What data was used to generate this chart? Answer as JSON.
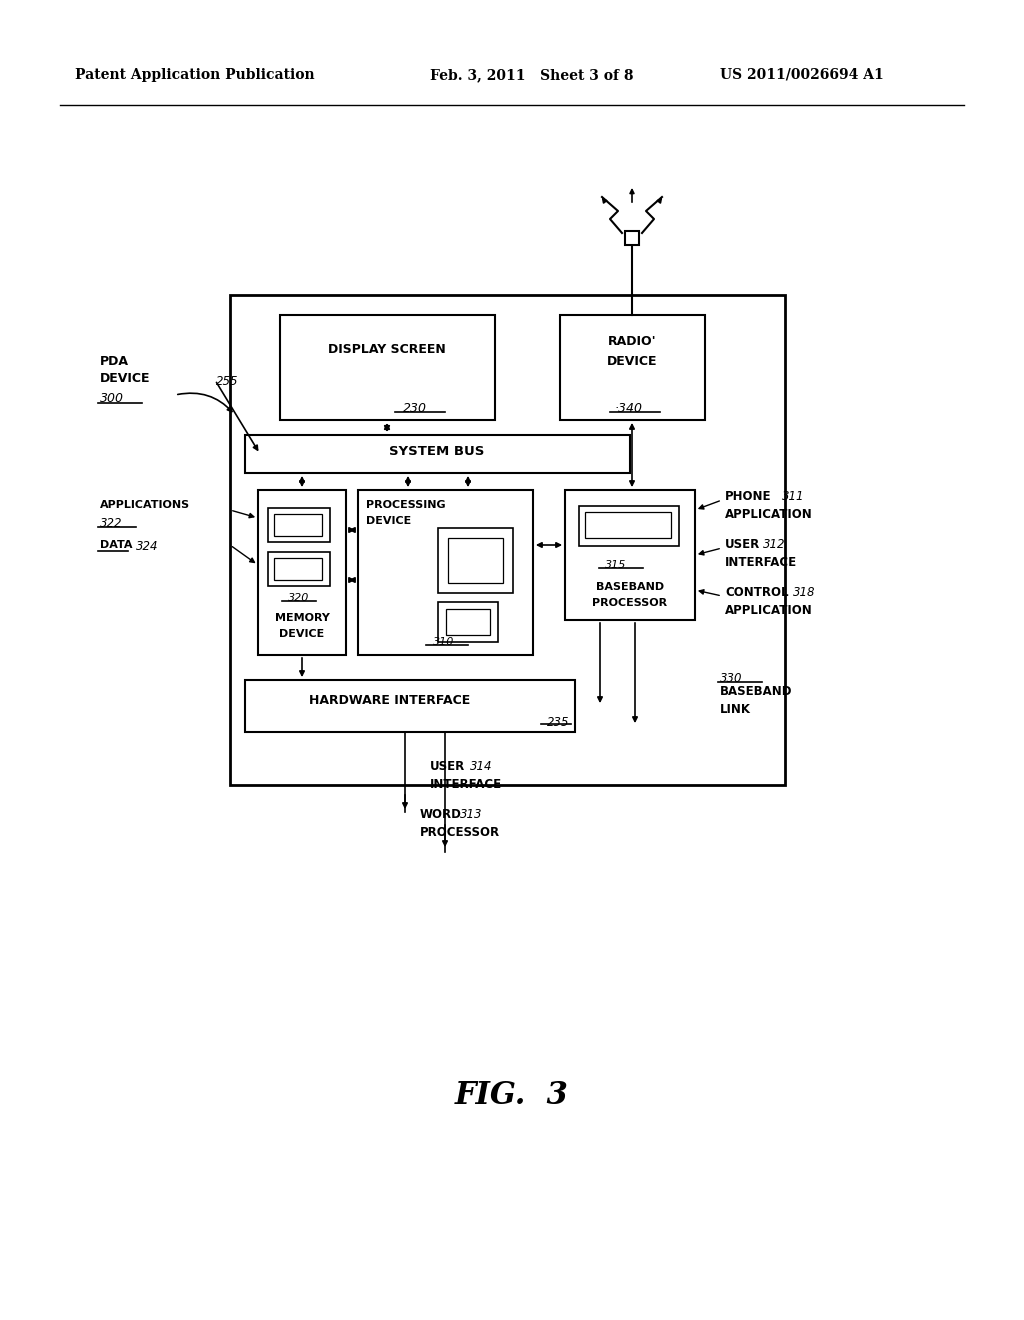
{
  "bg_color": "#ffffff",
  "header_left": "Patent Application Publication",
  "header_mid": "Feb. 3, 2011   Sheet 3 of 8",
  "header_right": "US 2011/0026694 A1",
  "fig_label": "FIG.  3"
}
